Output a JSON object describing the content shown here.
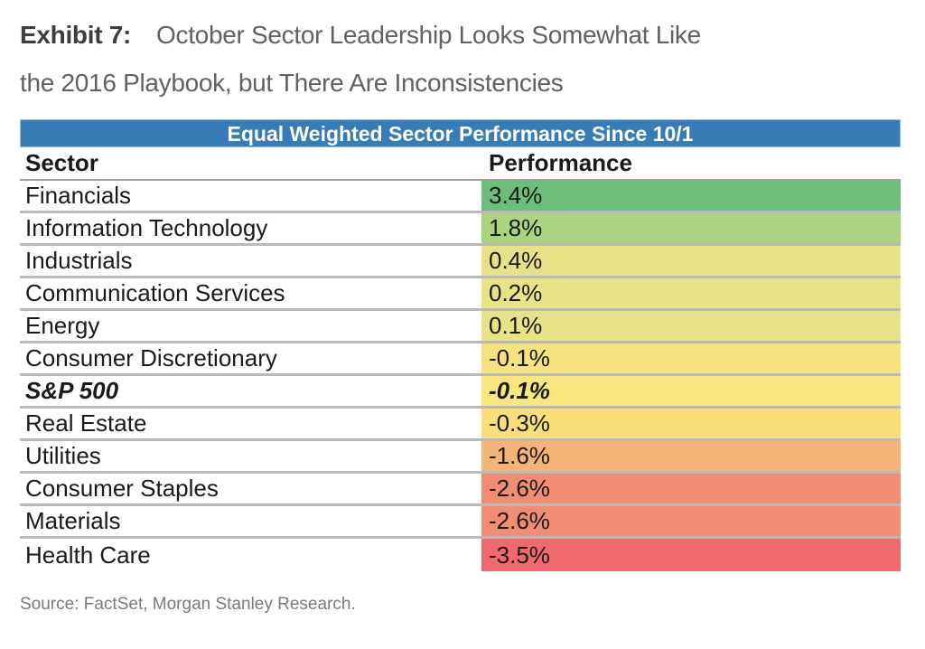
{
  "page": {
    "title": {
      "exhibit_label": "Exhibit 7:",
      "heading_line1": "October Sector Leadership Looks Somewhat Like",
      "heading_line2": "the 2016 Playbook, but There Are Inconsistencies"
    },
    "source_note": "Source: FactSet, Morgan Stanley Research."
  },
  "table": {
    "banner": "Equal Weighted Sector Performance Since 10/1",
    "columns": [
      "Sector",
      "Performance"
    ],
    "rows": [
      {
        "sector": "Financials",
        "performance": "3.4%",
        "color": "#6dbe7c",
        "emphasis": false
      },
      {
        "sector": "Information Technology",
        "performance": "1.8%",
        "color": "#acd37f",
        "emphasis": false
      },
      {
        "sector": "Industrials",
        "performance": "0.4%",
        "color": "#e7e286",
        "emphasis": false
      },
      {
        "sector": "Communication Services",
        "performance": "0.2%",
        "color": "#e9e388",
        "emphasis": false
      },
      {
        "sector": "Energy",
        "performance": "0.1%",
        "color": "#e9e388",
        "emphasis": false
      },
      {
        "sector": "Consumer Discretionary",
        "performance": "-0.1%",
        "color": "#f5e37f",
        "emphasis": false
      },
      {
        "sector": "S&P 500",
        "performance": "-0.1%",
        "color": "#f8e67e",
        "emphasis": true
      },
      {
        "sector": "Real Estate",
        "performance": "-0.3%",
        "color": "#f8df7c",
        "emphasis": false
      },
      {
        "sector": "Utilities",
        "performance": "-1.6%",
        "color": "#f4b476",
        "emphasis": false
      },
      {
        "sector": "Consumer Staples",
        "performance": "-2.6%",
        "color": "#f08d72",
        "emphasis": false
      },
      {
        "sector": "Materials",
        "performance": "-2.6%",
        "color": "#f08d72",
        "emphasis": false
      },
      {
        "sector": "Health Care",
        "performance": "-3.5%",
        "color": "#ef696e",
        "emphasis": false
      }
    ]
  },
  "colors": {
    "banner_blue": "#377cb5",
    "row_separator": "#b9b9b9",
    "header_underline": "#9e9e9e",
    "title_gray": "#616161",
    "source_gray": "#7a7a7a",
    "best_green": "#6dbe7c",
    "worst_red": "#ef696e"
  },
  "chart_data": {
    "type": "table",
    "title": "Equal Weighted Sector Performance Since 10/1",
    "columns": [
      "Sector",
      "Performance"
    ],
    "categories": [
      "Financials",
      "Information Technology",
      "Industrials",
      "Communication Services",
      "Energy",
      "Consumer Discretionary",
      "S&P 500",
      "Real Estate",
      "Utilities",
      "Consumer Staples",
      "Materials",
      "Health Care"
    ],
    "values": [
      3.4,
      1.8,
      0.4,
      0.2,
      0.1,
      -0.1,
      -0.1,
      -0.3,
      -1.6,
      -2.6,
      -2.6,
      -3.5
    ],
    "units": "%",
    "sorted": "descending by performance",
    "benchmark_row": "S&P 500",
    "color_scale": "heatmap on Performance column: green (highest) through yellow to red (lowest)"
  }
}
